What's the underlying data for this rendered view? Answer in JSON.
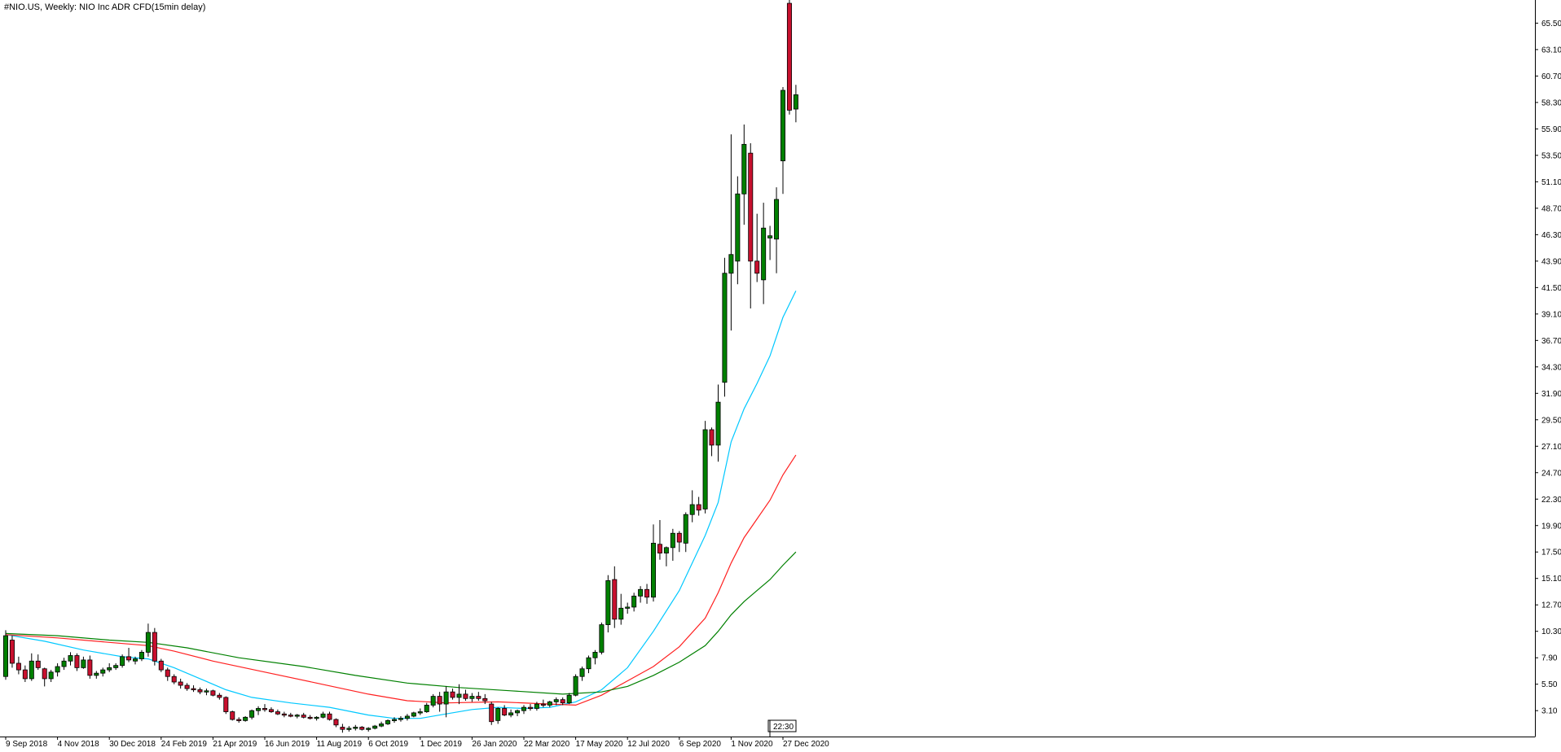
{
  "chart_data": {
    "type": "candlestick",
    "title": "#NIO.US, Weekly:  NIO Inc ADR CFD(15min delay)",
    "time_badge": "22:30",
    "y_ticks": [
      "3.10",
      "5.50",
      "7.90",
      "10.30",
      "12.70",
      "15.10",
      "17.50",
      "19.90",
      "22.30",
      "24.70",
      "27.10",
      "29.50",
      "31.90",
      "34.30",
      "36.70",
      "39.10",
      "41.50",
      "43.90",
      "46.30",
      "48.70",
      "51.10",
      "53.50",
      "55.90",
      "58.30",
      "60.70",
      "63.10",
      "65.50"
    ],
    "ylim": [
      0.75,
      67.6
    ],
    "x_labels": [
      {
        "label": "9 Sep 2018",
        "index": 0
      },
      {
        "label": "4 Nov 2018",
        "index": 8
      },
      {
        "label": "30 Dec 2018",
        "index": 16
      },
      {
        "label": "24 Feb 2019",
        "index": 24
      },
      {
        "label": "21 Apr 2019",
        "index": 32
      },
      {
        "label": "16 Jun 2019",
        "index": 40
      },
      {
        "label": "11 Aug 2019",
        "index": 48
      },
      {
        "label": "6 Oct 2019",
        "index": 56
      },
      {
        "label": "1 Dec 2019",
        "index": 64
      },
      {
        "label": "26 Jan 2020",
        "index": 72
      },
      {
        "label": "22 Mar 2020",
        "index": 80
      },
      {
        "label": "17 May 2020",
        "index": 88
      },
      {
        "label": "12 Jul 2020",
        "index": 96
      },
      {
        "label": "6 Sep 2020",
        "index": 104
      },
      {
        "label": "1 Nov 2020",
        "index": 112
      },
      {
        "label": "27 Dec 2020",
        "index": 120
      }
    ],
    "candles": [
      [
        6.2,
        10.4,
        5.9,
        9.9
      ],
      [
        9.5,
        9.9,
        7.0,
        7.4
      ],
      [
        7.4,
        8.0,
        6.4,
        6.8
      ],
      [
        6.8,
        7.2,
        5.7,
        6.0
      ],
      [
        6.0,
        8.3,
        5.8,
        7.6
      ],
      [
        7.6,
        8.2,
        6.8,
        7.0
      ],
      [
        6.9,
        7.0,
        5.3,
        6.0
      ],
      [
        6.0,
        6.8,
        5.7,
        6.6
      ],
      [
        6.6,
        7.4,
        6.2,
        7.1
      ],
      [
        7.1,
        7.9,
        6.8,
        7.6
      ],
      [
        7.6,
        8.4,
        7.2,
        8.1
      ],
      [
        8.1,
        8.3,
        6.7,
        7.0
      ],
      [
        7.0,
        8.0,
        6.9,
        7.7
      ],
      [
        7.7,
        8.1,
        6.0,
        6.3
      ],
      [
        6.3,
        6.7,
        6.0,
        6.5
      ],
      [
        6.5,
        7.0,
        6.2,
        6.8
      ],
      [
        6.8,
        7.4,
        6.6,
        7.0
      ],
      [
        7.0,
        7.4,
        6.8,
        7.2
      ],
      [
        7.2,
        8.2,
        7.0,
        8.0
      ],
      [
        8.0,
        8.8,
        7.5,
        7.7
      ],
      [
        7.6,
        8.0,
        7.3,
        7.8
      ],
      [
        7.8,
        8.6,
        7.6,
        8.4
      ],
      [
        8.4,
        11.0,
        8.0,
        10.2
      ],
      [
        10.2,
        10.6,
        7.2,
        7.6
      ],
      [
        7.6,
        7.8,
        6.6,
        6.8
      ],
      [
        6.8,
        7.0,
        5.8,
        6.2
      ],
      [
        6.2,
        6.4,
        5.5,
        5.7
      ],
      [
        5.7,
        6.0,
        5.1,
        5.4
      ],
      [
        5.4,
        5.6,
        4.9,
        5.1
      ],
      [
        5.1,
        5.4,
        4.8,
        5.0
      ],
      [
        5.0,
        5.2,
        4.6,
        4.8
      ],
      [
        4.8,
        5.1,
        4.5,
        4.9
      ],
      [
        4.9,
        5.0,
        4.4,
        4.5
      ],
      [
        4.5,
        4.7,
        4.1,
        4.3
      ],
      [
        4.3,
        4.4,
        2.8,
        3.0
      ],
      [
        3.0,
        3.1,
        2.2,
        2.3
      ],
      [
        2.3,
        2.5,
        2.0,
        2.2
      ],
      [
        2.2,
        2.6,
        2.1,
        2.5
      ],
      [
        2.5,
        3.2,
        2.3,
        3.1
      ],
      [
        3.1,
        3.5,
        2.7,
        3.3
      ],
      [
        3.3,
        3.7,
        3.0,
        3.2
      ],
      [
        3.2,
        3.4,
        2.9,
        3.0
      ],
      [
        3.0,
        3.2,
        2.7,
        2.8
      ],
      [
        2.8,
        3.0,
        2.5,
        2.7
      ],
      [
        2.7,
        2.9,
        2.5,
        2.6
      ],
      [
        2.6,
        2.8,
        2.4,
        2.7
      ],
      [
        2.7,
        2.9,
        2.4,
        2.5
      ],
      [
        2.5,
        2.7,
        2.3,
        2.4
      ],
      [
        2.4,
        2.6,
        2.2,
        2.5
      ],
      [
        2.5,
        3.0,
        2.4,
        2.8
      ],
      [
        2.8,
        3.0,
        2.2,
        2.3
      ],
      [
        2.3,
        2.4,
        1.6,
        1.8
      ],
      [
        1.6,
        1.9,
        1.1,
        1.4
      ],
      [
        1.4,
        1.7,
        1.2,
        1.5
      ],
      [
        1.5,
        1.8,
        1.3,
        1.6
      ],
      [
        1.6,
        1.7,
        1.3,
        1.4
      ],
      [
        1.4,
        1.6,
        1.2,
        1.5
      ],
      [
        1.5,
        1.8,
        1.4,
        1.7
      ],
      [
        1.7,
        2.1,
        1.6,
        1.9
      ],
      [
        1.9,
        2.3,
        1.8,
        2.2
      ],
      [
        2.2,
        2.5,
        2.0,
        2.3
      ],
      [
        2.3,
        2.6,
        2.1,
        2.4
      ],
      [
        2.4,
        2.8,
        2.2,
        2.6
      ],
      [
        2.6,
        3.0,
        2.5,
        2.9
      ],
      [
        2.9,
        3.3,
        2.7,
        3.0
      ],
      [
        3.0,
        3.8,
        2.9,
        3.6
      ],
      [
        3.6,
        4.6,
        3.4,
        4.4
      ],
      [
        4.4,
        4.8,
        3.0,
        3.7
      ],
      [
        3.7,
        5.3,
        2.5,
        4.8
      ],
      [
        4.8,
        5.1,
        4.1,
        4.3
      ],
      [
        4.3,
        5.5,
        3.7,
        4.6
      ],
      [
        4.6,
        5.0,
        4.0,
        4.2
      ],
      [
        4.2,
        4.7,
        3.9,
        4.4
      ],
      [
        4.4,
        4.8,
        4.0,
        4.2
      ],
      [
        4.2,
        4.6,
        3.7,
        4.0
      ],
      [
        3.7,
        3.9,
        1.8,
        2.1
      ],
      [
        2.2,
        3.4,
        1.9,
        3.3
      ],
      [
        3.3,
        3.6,
        2.6,
        2.7
      ],
      [
        2.7,
        3.2,
        2.5,
        2.9
      ],
      [
        2.9,
        3.2,
        2.6,
        3.1
      ],
      [
        3.1,
        3.6,
        2.8,
        3.4
      ],
      [
        3.4,
        3.7,
        3.1,
        3.3
      ],
      [
        3.3,
        3.9,
        3.1,
        3.7
      ],
      [
        3.7,
        4.1,
        3.4,
        3.6
      ],
      [
        3.6,
        4.0,
        3.4,
        3.9
      ],
      [
        3.9,
        4.3,
        3.6,
        4.1
      ],
      [
        4.1,
        4.3,
        3.6,
        3.8
      ],
      [
        3.8,
        4.7,
        3.7,
        4.5
      ],
      [
        4.5,
        6.4,
        4.4,
        6.2
      ],
      [
        6.2,
        7.1,
        5.8,
        6.9
      ],
      [
        6.9,
        8.1,
        6.5,
        7.9
      ],
      [
        7.9,
        8.6,
        7.3,
        8.4
      ],
      [
        8.4,
        11.1,
        8.2,
        10.9
      ],
      [
        10.9,
        15.4,
        10.2,
        14.9
      ],
      [
        15.0,
        16.2,
        10.6,
        11.4
      ],
      [
        11.4,
        13.7,
        10.9,
        12.4
      ],
      [
        12.4,
        12.9,
        11.9,
        12.5
      ],
      [
        12.5,
        13.8,
        12.1,
        13.5
      ],
      [
        13.5,
        14.4,
        12.9,
        14.1
      ],
      [
        14.1,
        14.6,
        12.8,
        13.4
      ],
      [
        13.4,
        20.0,
        13.0,
        18.3
      ],
      [
        18.2,
        20.4,
        16.8,
        17.4
      ],
      [
        17.4,
        18.0,
        16.2,
        17.9
      ],
      [
        17.9,
        19.6,
        16.7,
        19.2
      ],
      [
        19.2,
        19.4,
        17.5,
        18.4
      ],
      [
        18.3,
        21.1,
        17.5,
        20.9
      ],
      [
        20.9,
        23.1,
        20.2,
        21.8
      ],
      [
        21.8,
        22.5,
        20.8,
        21.3
      ],
      [
        21.4,
        29.4,
        21.0,
        28.6
      ],
      [
        28.6,
        28.8,
        26.2,
        27.2
      ],
      [
        27.2,
        32.7,
        25.7,
        31.1
      ],
      [
        32.9,
        44.2,
        31.6,
        42.8
      ],
      [
        42.8,
        55.4,
        37.6,
        44.5
      ],
      [
        43.9,
        51.6,
        41.8,
        50.0
      ],
      [
        50.0,
        56.3,
        47.2,
        54.5
      ],
      [
        53.7,
        54.6,
        39.6,
        43.9
      ],
      [
        43.9,
        48.2,
        42.0,
        42.8
      ],
      [
        42.2,
        49.2,
        40.0,
        46.9
      ],
      [
        46.0,
        47.1,
        44.0,
        46.2
      ],
      [
        45.9,
        50.6,
        42.8,
        49.5
      ],
      [
        53.0,
        59.7,
        50.0,
        59.4
      ],
      [
        67.3,
        68.0,
        57.2,
        57.6
      ],
      [
        57.7,
        59.9,
        56.5,
        59.0
      ]
    ],
    "series": [
      {
        "color": "#00c8ff",
        "points": [
          [
            0,
            10.0
          ],
          [
            6,
            9.4
          ],
          [
            12,
            8.6
          ],
          [
            18,
            8.0
          ],
          [
            22,
            7.8
          ],
          [
            26,
            7.0
          ],
          [
            30,
            6.0
          ],
          [
            34,
            5.0
          ],
          [
            38,
            4.3
          ],
          [
            44,
            3.8
          ],
          [
            50,
            3.4
          ],
          [
            56,
            2.7
          ],
          [
            60,
            2.4
          ],
          [
            64,
            2.4
          ],
          [
            68,
            2.8
          ],
          [
            72,
            3.2
          ],
          [
            76,
            3.4
          ],
          [
            80,
            3.3
          ],
          [
            84,
            3.4
          ],
          [
            88,
            3.9
          ],
          [
            92,
            5.0
          ],
          [
            96,
            7.0
          ],
          [
            100,
            10.3
          ],
          [
            104,
            14.0
          ],
          [
            108,
            19.0
          ],
          [
            110,
            22.0
          ],
          [
            112,
            27.5
          ],
          [
            114,
            30.5
          ],
          [
            116,
            32.8
          ],
          [
            118,
            35.3
          ],
          [
            120,
            38.8
          ],
          [
            122,
            41.2
          ]
        ]
      },
      {
        "color": "#ff2020",
        "points": [
          [
            0,
            10.0
          ],
          [
            8,
            9.7
          ],
          [
            16,
            9.3
          ],
          [
            22,
            9.0
          ],
          [
            26,
            8.5
          ],
          [
            32,
            7.6
          ],
          [
            40,
            6.6
          ],
          [
            48,
            5.6
          ],
          [
            56,
            4.6
          ],
          [
            62,
            4.0
          ],
          [
            68,
            3.8
          ],
          [
            76,
            3.9
          ],
          [
            84,
            3.7
          ],
          [
            88,
            3.6
          ],
          [
            92,
            4.5
          ],
          [
            96,
            5.8
          ],
          [
            100,
            7.1
          ],
          [
            104,
            8.9
          ],
          [
            108,
            11.5
          ],
          [
            110,
            13.8
          ],
          [
            112,
            16.5
          ],
          [
            114,
            18.8
          ],
          [
            116,
            20.5
          ],
          [
            118,
            22.2
          ],
          [
            120,
            24.5
          ],
          [
            122,
            26.3
          ]
        ]
      },
      {
        "color": "#008000",
        "points": [
          [
            0,
            10.1
          ],
          [
            8,
            9.9
          ],
          [
            16,
            9.5
          ],
          [
            22,
            9.3
          ],
          [
            28,
            8.8
          ],
          [
            36,
            7.9
          ],
          [
            46,
            7.1
          ],
          [
            54,
            6.3
          ],
          [
            62,
            5.6
          ],
          [
            70,
            5.2
          ],
          [
            78,
            4.9
          ],
          [
            86,
            4.6
          ],
          [
            92,
            4.8
          ],
          [
            96,
            5.3
          ],
          [
            100,
            6.3
          ],
          [
            104,
            7.5
          ],
          [
            108,
            9.0
          ],
          [
            110,
            10.3
          ],
          [
            112,
            11.8
          ],
          [
            114,
            13.0
          ],
          [
            116,
            14.0
          ],
          [
            118,
            15.0
          ],
          [
            120,
            16.3
          ],
          [
            122,
            17.5
          ]
        ]
      }
    ],
    "colors": {
      "bull": "#008000",
      "bear": "#c8102e",
      "wick": "#000000",
      "axis": "#000000"
    },
    "grid": false
  }
}
